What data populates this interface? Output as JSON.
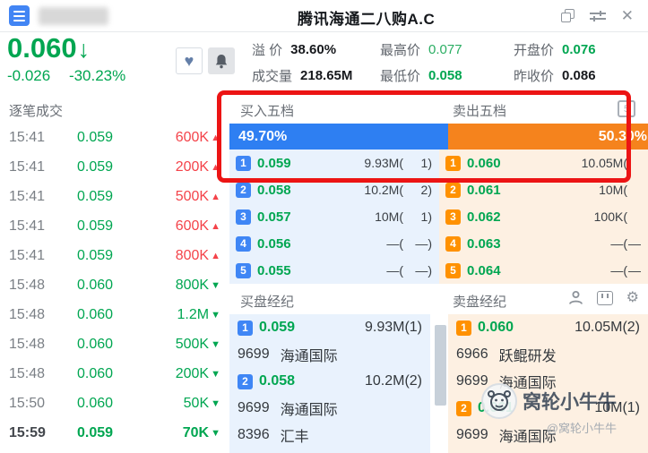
{
  "colors": {
    "green": "#00a651",
    "red": "#f4434a",
    "blue": "#2e7ff2",
    "orange": "#f5831d",
    "badge_blue": "#3f86f5",
    "badge_orange": "#ff9100",
    "highlight_red": "#ec1414"
  },
  "window": {
    "title": "腾讯海通二八购A.C",
    "close_label": "✕"
  },
  "quote": {
    "price": "0.060",
    "arrow": "↓",
    "change": "-0.026",
    "change_pct": "-30.23%",
    "fav_icon": "♥",
    "stats": {
      "premium_label": "溢 价",
      "premium_value": "38.60%",
      "volume_label": "成交量",
      "volume_value": "218.65M",
      "high_label": "最高价",
      "high_value": "0.077",
      "low_label": "最低价",
      "low_value": "0.058",
      "open_label": "开盘价",
      "open_value": "0.076",
      "prev_close_label": "昨收价",
      "prev_close_value": "0.086"
    }
  },
  "tick_panel": {
    "title": "逐笔成交",
    "rows": [
      {
        "time": "15:41",
        "price": "0.059",
        "volume": "600K",
        "dir": "up"
      },
      {
        "time": "15:41",
        "price": "0.059",
        "volume": "200K",
        "dir": "up"
      },
      {
        "time": "15:41",
        "price": "0.059",
        "volume": "500K",
        "dir": "up"
      },
      {
        "time": "15:41",
        "price": "0.059",
        "volume": "600K",
        "dir": "up"
      },
      {
        "time": "15:41",
        "price": "0.059",
        "volume": "800K",
        "dir": "up"
      },
      {
        "time": "15:48",
        "price": "0.060",
        "volume": "800K",
        "dir": "down"
      },
      {
        "time": "15:48",
        "price": "0.060",
        "volume": "1.2M",
        "dir": "down"
      },
      {
        "time": "15:48",
        "price": "0.060",
        "volume": "500K",
        "dir": "down"
      },
      {
        "time": "15:48",
        "price": "0.060",
        "volume": "200K",
        "dir": "down"
      },
      {
        "time": "15:50",
        "price": "0.060",
        "volume": "50K",
        "dir": "down"
      },
      {
        "time": "15:59",
        "price": "0.059",
        "volume": "70K",
        "dir": "down",
        "last": true
      }
    ]
  },
  "depth_panel": {
    "bid_title": "买入五档",
    "ask_title": "卖出五档",
    "bid_ratio": "49.70%",
    "ask_ratio": "50.30%",
    "bid_levels": [
      {
        "level": "1",
        "price": "0.059",
        "volume": "9.93M(",
        "count": "1)"
      },
      {
        "level": "2",
        "price": "0.058",
        "volume": "10.2M(",
        "count": "2)"
      },
      {
        "level": "3",
        "price": "0.057",
        "volume": "10M(",
        "count": "1)"
      },
      {
        "level": "4",
        "price": "0.056",
        "volume": "—(",
        "count": "—)"
      },
      {
        "level": "5",
        "price": "0.055",
        "volume": "—(",
        "count": "—)"
      }
    ],
    "ask_levels": [
      {
        "level": "1",
        "price": "0.060",
        "volume": "10.05M(",
        "count": ""
      },
      {
        "level": "2",
        "price": "0.061",
        "volume": "10M(",
        "count": ""
      },
      {
        "level": "3",
        "price": "0.062",
        "volume": "100K(",
        "count": ""
      },
      {
        "level": "4",
        "price": "0.063",
        "volume": "—(",
        "count": "—"
      },
      {
        "level": "5",
        "price": "0.064",
        "volume": "—(",
        "count": "—"
      }
    ]
  },
  "broker_panel": {
    "bid_title": "买盘经纪",
    "ask_title": "卖盘经纪",
    "bid_rows": [
      {
        "type": "level",
        "level": "1",
        "price": "0.059",
        "volume": "9.93M(1)"
      },
      {
        "type": "name",
        "code": "9699",
        "name": "海通国际"
      },
      {
        "type": "level",
        "level": "2",
        "price": "0.058",
        "volume": "10.2M(2)"
      },
      {
        "type": "name",
        "code": "9699",
        "name": "海通国际"
      },
      {
        "type": "name",
        "code": "8396",
        "name": "汇丰"
      }
    ],
    "ask_rows": [
      {
        "type": "level",
        "level": "1",
        "price": "0.060",
        "volume": "10.05M(2)"
      },
      {
        "type": "name",
        "code": "6966",
        "name": "跃鲲研发"
      },
      {
        "type": "name",
        "code": "9699",
        "name": "海通国际"
      },
      {
        "type": "level",
        "level": "2",
        "price": "0.061",
        "volume": "10M(1)"
      },
      {
        "type": "name",
        "code": "9699",
        "name": "海通国际"
      }
    ]
  },
  "watermark": {
    "name": "窝轮小牛牛",
    "handle": "@窝轮小牛牛"
  }
}
